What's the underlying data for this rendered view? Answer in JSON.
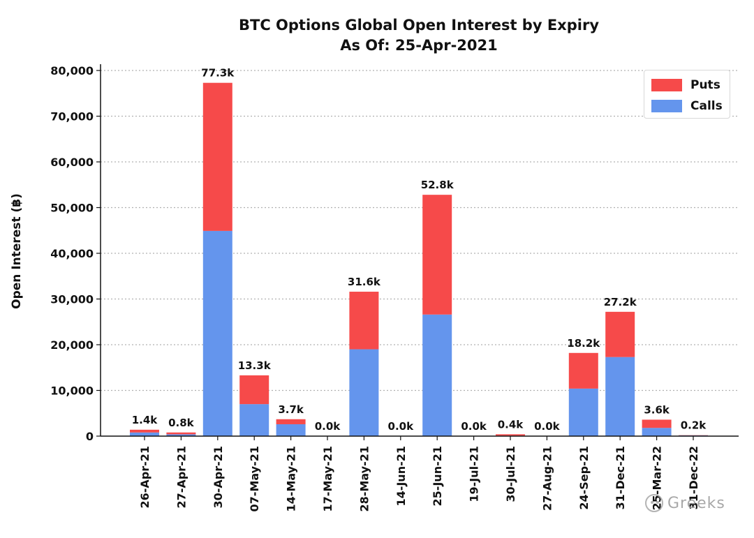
{
  "chart_data": {
    "type": "bar",
    "stacked": true,
    "title": "BTC Options Global Open Interest by Expiry",
    "subtitle": "As Of: 25-Apr-2021",
    "xlabel": "",
    "ylabel": "Open Interest (฿)",
    "ylim": [
      0,
      80000
    ],
    "yticks": [
      "0",
      "10,000",
      "20,000",
      "30,000",
      "40,000",
      "50,000",
      "60,000",
      "70,000",
      "80,000"
    ],
    "ytick_values": [
      0,
      10000,
      20000,
      30000,
      40000,
      50000,
      60000,
      70000,
      80000
    ],
    "grid": "horizontal dotted",
    "legend_position": "top-right",
    "categories": [
      "26-Apr-21",
      "27-Apr-21",
      "30-Apr-21",
      "07-May-21",
      "14-May-21",
      "17-May-21",
      "28-May-21",
      "14-Jun-21",
      "25-Jun-21",
      "19-Jul-21",
      "30-Jul-21",
      "27-Aug-21",
      "24-Sep-21",
      "31-Dec-21",
      "25-Mar-22",
      "31-Dec-22"
    ],
    "series": [
      {
        "name": "Calls",
        "color": "#6495ed",
        "values": [
          800,
          400,
          44900,
          7000,
          2600,
          0,
          19000,
          0,
          26600,
          0,
          100,
          0,
          10400,
          17300,
          1800,
          150
        ]
      },
      {
        "name": "Puts",
        "color": "#f64a4a",
        "values": [
          600,
          400,
          32400,
          6300,
          1100,
          0,
          12600,
          0,
          26200,
          0,
          300,
          0,
          7800,
          9900,
          1800,
          50
        ]
      }
    ],
    "totals": [
      "1.4k",
      "0.8k",
      "77.3k",
      "13.3k",
      "3.7k",
      "0.0k",
      "31.6k",
      "0.0k",
      "52.8k",
      "0.0k",
      "0.4k",
      "0.0k",
      "18.2k",
      "27.2k",
      "3.6k",
      "0.2k"
    ]
  },
  "legend": {
    "puts": "Puts",
    "calls": "Calls"
  },
  "watermark": {
    "text": "Greeks",
    "icon": "chat-bubble-icon"
  }
}
